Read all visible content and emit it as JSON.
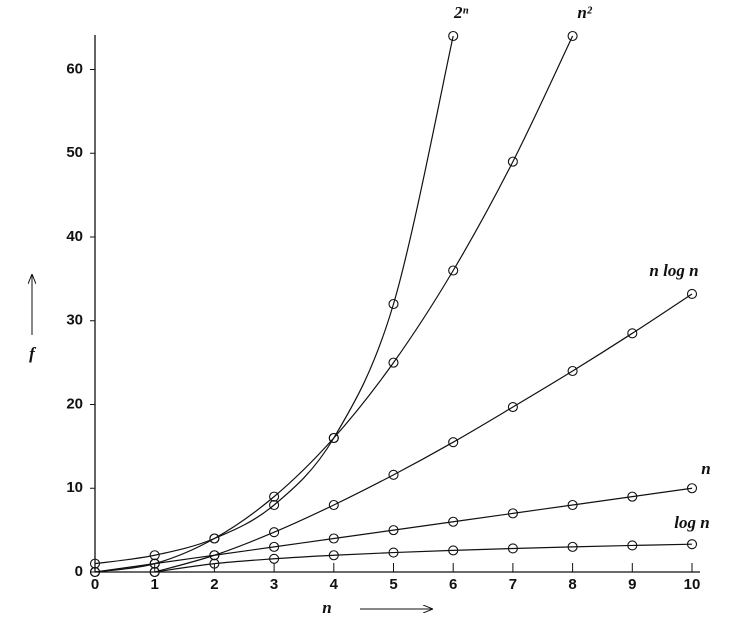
{
  "chart_data": {
    "type": "line",
    "x_label": "n",
    "y_label": "f",
    "xlim": [
      0,
      10
    ],
    "ylim": [
      0,
      64
    ],
    "xticks": [
      0,
      1,
      2,
      3,
      4,
      5,
      6,
      7,
      8,
      9,
      10
    ],
    "yticks": [
      0,
      10,
      20,
      30,
      40,
      50,
      60
    ],
    "color": "#111111",
    "series": [
      {
        "name": "2ⁿ",
        "x": [
          0,
          1,
          2,
          3,
          4,
          5,
          6
        ],
        "values": [
          1,
          2,
          4,
          8,
          16,
          32,
          64
        ]
      },
      {
        "name": "n²",
        "x": [
          0,
          1,
          2,
          3,
          4,
          5,
          6,
          7,
          8
        ],
        "values": [
          0,
          1,
          4,
          9,
          16,
          25,
          36,
          49,
          64
        ]
      },
      {
        "name": "n log n",
        "x": [
          1,
          2,
          3,
          4,
          5,
          6,
          7,
          8,
          9,
          10
        ],
        "values": [
          0,
          2,
          4.75,
          8,
          11.6,
          15.5,
          19.7,
          24,
          28.5,
          33.2
        ]
      },
      {
        "name": "n",
        "x": [
          0,
          1,
          2,
          3,
          4,
          5,
          6,
          7,
          8,
          9,
          10
        ],
        "values": [
          0,
          1,
          2,
          3,
          4,
          5,
          6,
          7,
          8,
          9,
          10
        ]
      },
      {
        "name": "log n",
        "x": [
          1,
          2,
          3,
          4,
          5,
          6,
          7,
          8,
          9,
          10
        ],
        "values": [
          0,
          1,
          1.58,
          2,
          2.32,
          2.58,
          2.81,
          3,
          3.17,
          3.32
        ]
      }
    ]
  }
}
